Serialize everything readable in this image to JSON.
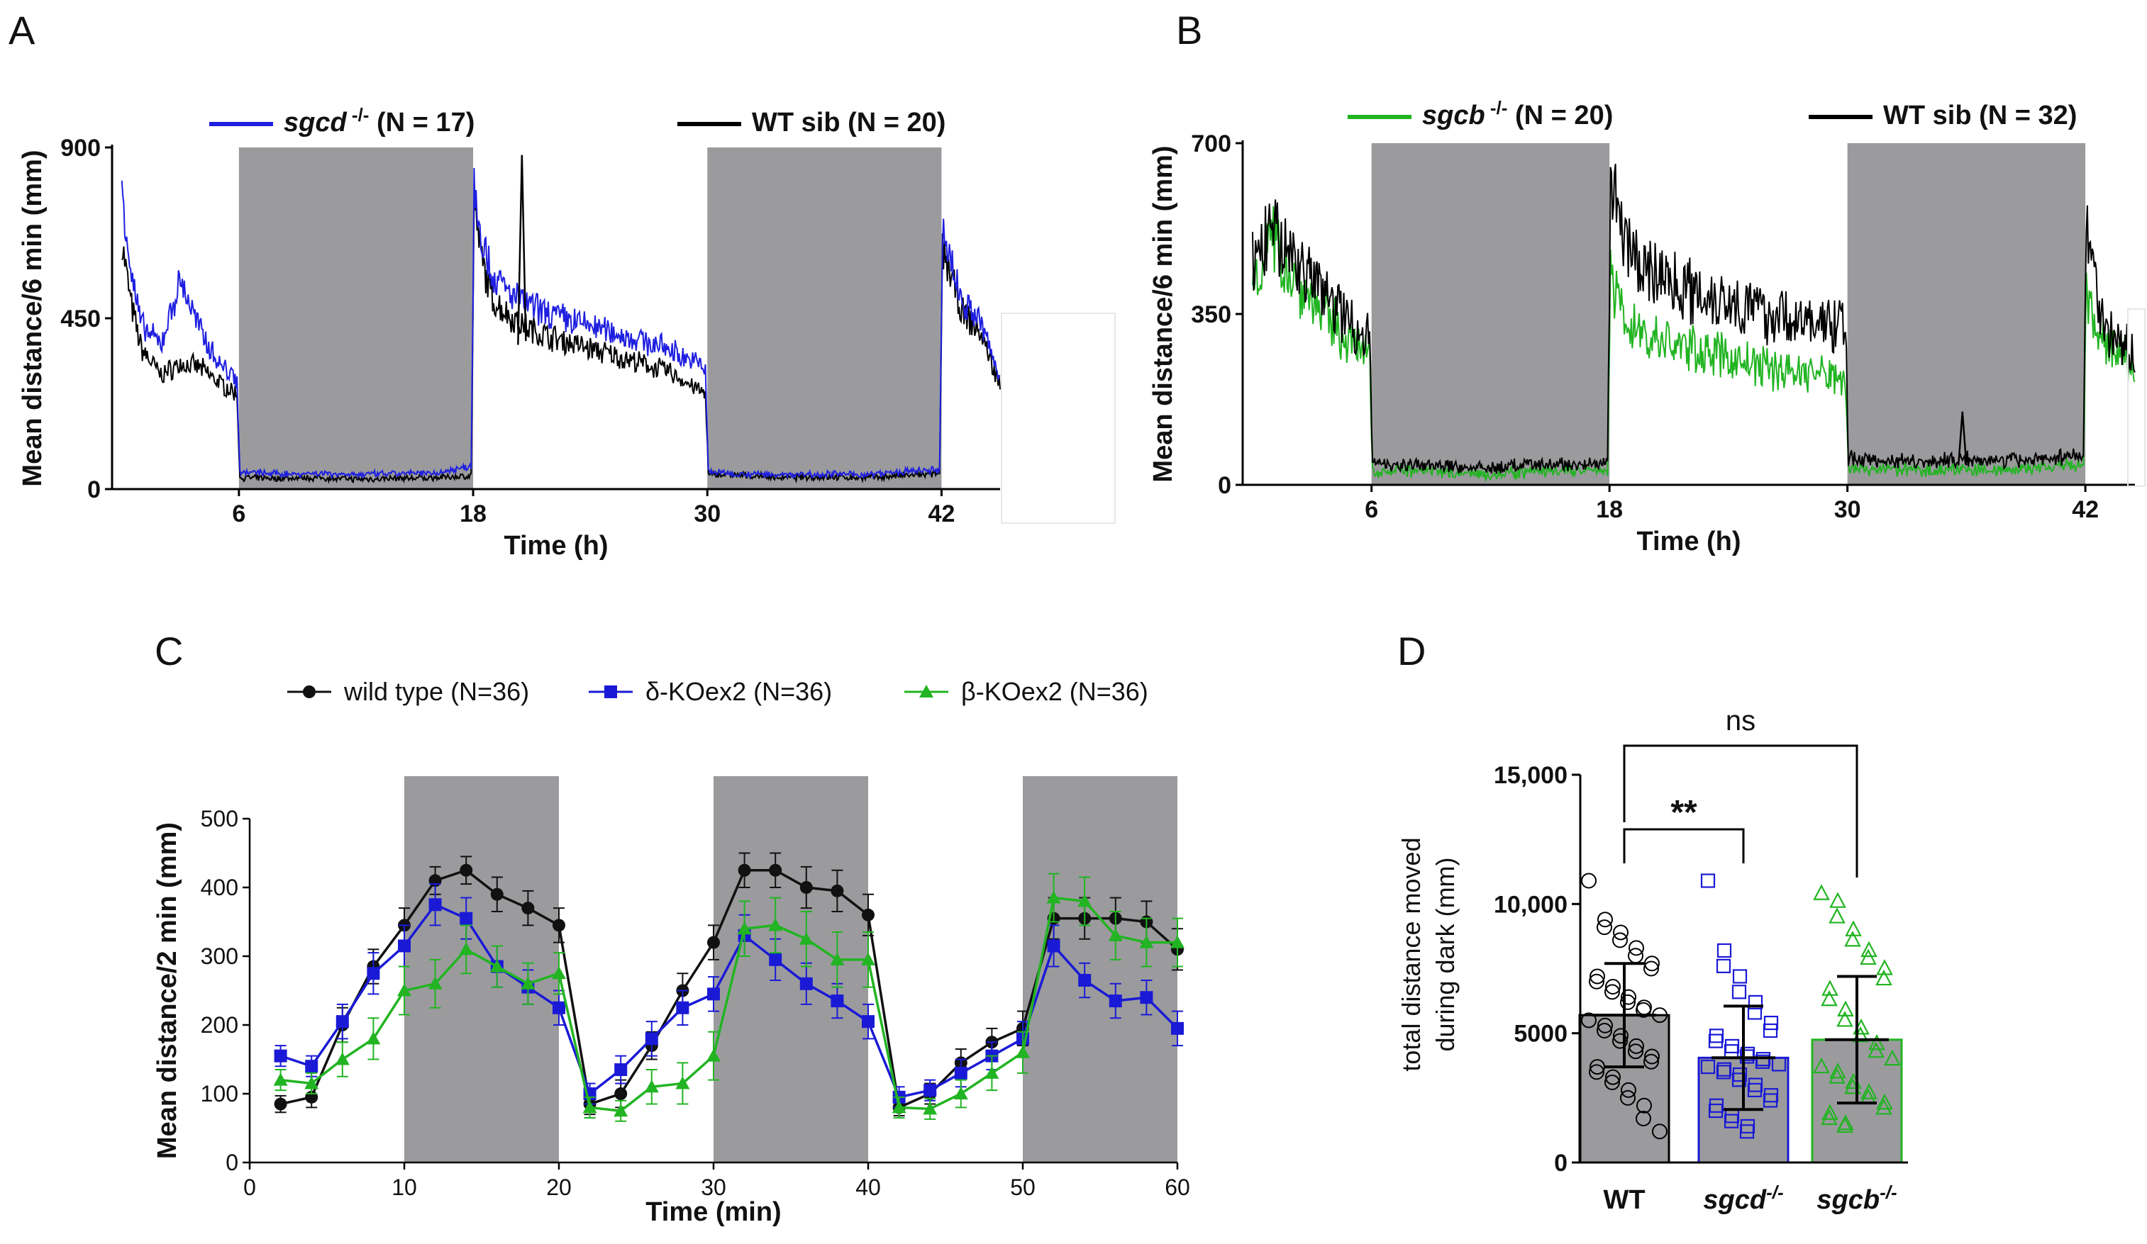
{
  "chart_data": [
    {
      "panel": "A",
      "type": "line",
      "xlabel": "Time (h)",
      "ylabel": "Mean distance/6 min (mm)",
      "x_range": [
        -0.5,
        45
      ],
      "ylim": [
        0,
        900
      ],
      "y_ticks": [
        "0",
        "450",
        "900"
      ],
      "x_ticks": [
        "6",
        "18",
        "30",
        "42"
      ],
      "dark_periods": [
        [
          6,
          18
        ],
        [
          30,
          42
        ]
      ],
      "colors": {
        "mutant": "#1f1fe0",
        "wt": "#000000"
      },
      "legend": [
        {
          "name": "sgcd",
          "sup": "-/-",
          "count": "(N = 17)",
          "color": "#1f1fe0"
        },
        {
          "name": "WT sib (N = 20)",
          "color": "#000000"
        }
      ],
      "series": [
        {
          "name": "WT sib",
          "color": "#000000",
          "x": [
            0,
            0.5,
            1,
            2,
            3,
            4,
            5,
            5.9,
            6.05,
            8,
            10,
            12,
            14,
            16,
            17.9,
            18.05,
            18.5,
            19,
            20,
            21,
            22,
            24,
            26,
            28,
            29.9,
            30.05,
            32,
            34,
            36,
            38,
            40,
            41.9,
            42.05,
            42.5,
            43,
            44,
            45
          ],
          "y": [
            650,
            480,
            370,
            300,
            330,
            320,
            280,
            250,
            30,
            28,
            30,
            26,
            28,
            30,
            35,
            740,
            590,
            500,
            450,
            420,
            400,
            370,
            340,
            310,
            250,
            40,
            35,
            30,
            32,
            30,
            35,
            40,
            630,
            560,
            470,
            410,
            270
          ]
        },
        {
          "name": "sgcd -/-",
          "color": "#1f1fe0",
          "x": [
            0,
            0.5,
            1,
            2,
            3,
            4,
            5,
            5.9,
            6.05,
            8,
            10,
            12,
            14,
            16,
            17.9,
            18.05,
            18.5,
            19,
            20,
            21,
            22,
            24,
            26,
            28,
            29.9,
            30.05,
            32,
            34,
            36,
            38,
            40,
            41.9,
            42.05,
            42.5,
            43,
            44,
            45
          ],
          "y": [
            800,
            560,
            430,
            380,
            550,
            420,
            330,
            290,
            45,
            40,
            42,
            38,
            40,
            42,
            60,
            810,
            650,
            560,
            510,
            480,
            460,
            430,
            400,
            370,
            320,
            45,
            40,
            38,
            40,
            38,
            45,
            50,
            680,
            600,
            500,
            440,
            290
          ]
        }
      ]
    },
    {
      "panel": "B",
      "type": "line",
      "xlabel": "Time (h)",
      "ylabel": "Mean distance/6 min (mm)",
      "x_range": [
        -0.5,
        44.5
      ],
      "ylim": [
        0,
        700
      ],
      "y_ticks": [
        "0",
        "350",
        "700"
      ],
      "x_ticks": [
        "6",
        "18",
        "30",
        "42"
      ],
      "dark_periods": [
        [
          6,
          18
        ],
        [
          30,
          42
        ]
      ],
      "colors": {
        "mutant": "#22b422",
        "wt": "#000000"
      },
      "legend": [
        {
          "name": "sgcb",
          "sup": "-/-",
          "count": "(N = 20)",
          "color": "#22b422"
        },
        {
          "name": "WT sib (N = 32)",
          "color": "#000000"
        }
      ],
      "series": [
        {
          "name": "WT sib",
          "color": "#000000",
          "x": [
            0,
            1,
            2,
            3,
            4,
            5,
            5.9,
            6.05,
            8,
            10,
            12,
            14,
            16,
            17.9,
            18.05,
            19,
            20,
            22,
            24,
            26,
            28,
            29.9,
            30.05,
            32,
            34,
            36,
            38,
            40,
            41.9,
            42.05,
            42.5,
            43,
            44,
            44.5
          ],
          "y": [
            450,
            520,
            470,
            420,
            380,
            330,
            300,
            45,
            40,
            38,
            35,
            40,
            42,
            45,
            620,
            470,
            440,
            400,
            380,
            350,
            330,
            330,
            55,
            50,
            48,
            52,
            50,
            55,
            60,
            560,
            420,
            320,
            280,
            260
          ]
        },
        {
          "name": "sgcb -/-",
          "color": "#22b422",
          "x": [
            0,
            1,
            2,
            3,
            4,
            5,
            5.9,
            6.05,
            8,
            10,
            12,
            14,
            16,
            17.9,
            18.05,
            19,
            20,
            22,
            24,
            26,
            28,
            29.9,
            30.05,
            32,
            34,
            36,
            38,
            40,
            41.9,
            42.05,
            42.5,
            43,
            44,
            44.5
          ],
          "y": [
            430,
            500,
            430,
            380,
            330,
            290,
            260,
            30,
            28,
            25,
            22,
            26,
            28,
            30,
            410,
            330,
            300,
            280,
            260,
            240,
            230,
            220,
            35,
            32,
            30,
            32,
            30,
            35,
            40,
            380,
            320,
            290,
            250,
            240
          ]
        }
      ]
    },
    {
      "panel": "C",
      "type": "line",
      "xlabel": "Time (min)",
      "ylabel": "Mean distance/2 min (mm)",
      "xlim": [
        0,
        60
      ],
      "ylim": [
        0,
        500
      ],
      "x_ticks": [
        "0",
        "10",
        "20",
        "30",
        "40",
        "50",
        "60"
      ],
      "y_ticks": [
        "0",
        "100",
        "200",
        "300",
        "400",
        "500"
      ],
      "dark_periods": [
        [
          10,
          20
        ],
        [
          30,
          40
        ],
        [
          50,
          60
        ]
      ],
      "legend": [
        "wild type (N=36)",
        "δ-KOex2 (N=36)",
        "β-KOex2 (N=36)"
      ],
      "x": [
        2,
        4,
        6,
        8,
        10,
        12,
        14,
        16,
        18,
        20,
        22,
        24,
        26,
        28,
        30,
        32,
        34,
        36,
        38,
        40,
        42,
        44,
        46,
        48,
        50,
        52,
        54,
        56,
        58,
        60
      ],
      "series": [
        {
          "name": "wild type (N=36)",
          "color": "#111111",
          "marker": "circle",
          "values": [
            85,
            95,
            200,
            285,
            345,
            410,
            425,
            390,
            370,
            345,
            85,
            100,
            170,
            250,
            320,
            425,
            425,
            400,
            395,
            360,
            80,
            100,
            145,
            175,
            195,
            355,
            355,
            355,
            350,
            310
          ],
          "err": [
            12,
            15,
            25,
            25,
            25,
            20,
            20,
            25,
            25,
            25,
            15,
            20,
            20,
            25,
            25,
            25,
            25,
            30,
            30,
            30,
            12,
            15,
            20,
            20,
            25,
            30,
            30,
            30,
            30,
            30
          ]
        },
        {
          "name": "δ-KOex2 (N=36)",
          "color": "#1a1ad6",
          "marker": "square",
          "values": [
            155,
            140,
            205,
            275,
            315,
            375,
            355,
            285,
            255,
            225,
            100,
            135,
            180,
            225,
            245,
            330,
            295,
            260,
            235,
            205,
            95,
            105,
            130,
            155,
            180,
            315,
            265,
            235,
            240,
            195
          ],
          "err": [
            15,
            15,
            25,
            30,
            30,
            30,
            30,
            30,
            25,
            25,
            15,
            20,
            25,
            25,
            25,
            30,
            30,
            30,
            25,
            25,
            15,
            15,
            20,
            20,
            25,
            30,
            25,
            25,
            25,
            25
          ]
        },
        {
          "name": "β-KOex2 (N=36)",
          "color": "#22b422",
          "marker": "triangle",
          "values": [
            120,
            115,
            150,
            180,
            250,
            260,
            310,
            285,
            260,
            275,
            80,
            75,
            110,
            115,
            155,
            340,
            345,
            325,
            295,
            295,
            80,
            78,
            100,
            130,
            160,
            385,
            380,
            330,
            320,
            320
          ],
          "err": [
            15,
            15,
            25,
            30,
            35,
            35,
            35,
            30,
            30,
            30,
            15,
            15,
            25,
            30,
            35,
            40,
            40,
            40,
            40,
            40,
            15,
            15,
            20,
            25,
            30,
            35,
            35,
            35,
            35,
            35
          ]
        }
      ]
    },
    {
      "panel": "D",
      "type": "bar",
      "ylabel_lines": [
        "total distance moved",
        "during dark (mm)"
      ],
      "ylim": [
        0,
        15000
      ],
      "y_ticks": [
        "0",
        "5000",
        "10,000",
        "15,000"
      ],
      "categories": [
        {
          "label": "WT",
          "sup": ""
        },
        {
          "label": "sgcd",
          "sup": "-/-"
        },
        {
          "label": "sgcb",
          "sup": "-/-"
        }
      ],
      "values": [
        5700,
        4050,
        4750
      ],
      "sd": [
        2000,
        2000,
        2450
      ],
      "colors": [
        "#000000",
        "#1a1ad6",
        "#22b422"
      ],
      "markers": [
        "circle",
        "square",
        "triangle"
      ],
      "bar_fill": "#9b9b9e",
      "points": [
        [
          10900,
          9400,
          9100,
          8900,
          8600,
          8300,
          8000,
          7700,
          7500,
          7200,
          7000,
          6800,
          6600,
          6400,
          6200,
          6000,
          5900,
          5700,
          5500,
          5300,
          5100,
          4900,
          4700,
          4500,
          4300,
          4100,
          3900,
          3700,
          3500,
          3300,
          3100,
          2800,
          2500,
          2200,
          1700,
          1200
        ],
        [
          10900,
          8200,
          7600,
          7200,
          6600,
          6200,
          5800,
          5400,
          5100,
          4900,
          4700,
          4500,
          4300,
          4200,
          4100,
          4000,
          3900,
          3800,
          3700,
          3600,
          3500,
          3400,
          3200,
          3000,
          2800,
          2600,
          2400,
          2200,
          2000,
          1800,
          1600,
          1400,
          1200
        ],
        [
          10400,
          10100,
          9500,
          9000,
          8600,
          8200,
          7900,
          7500,
          7100,
          6700,
          6300,
          5900,
          5500,
          5200,
          4900,
          4600,
          4300,
          4000,
          3700,
          3500,
          3300,
          3100,
          2900,
          2700,
          2500,
          2300,
          2100,
          1900,
          1700,
          1500,
          1400
        ]
      ],
      "annotations": [
        {
          "between": [
            "WT",
            "sgcd"
          ],
          "text": "**"
        },
        {
          "between": [
            "WT",
            "sgcb"
          ],
          "text": "ns"
        }
      ]
    }
  ]
}
